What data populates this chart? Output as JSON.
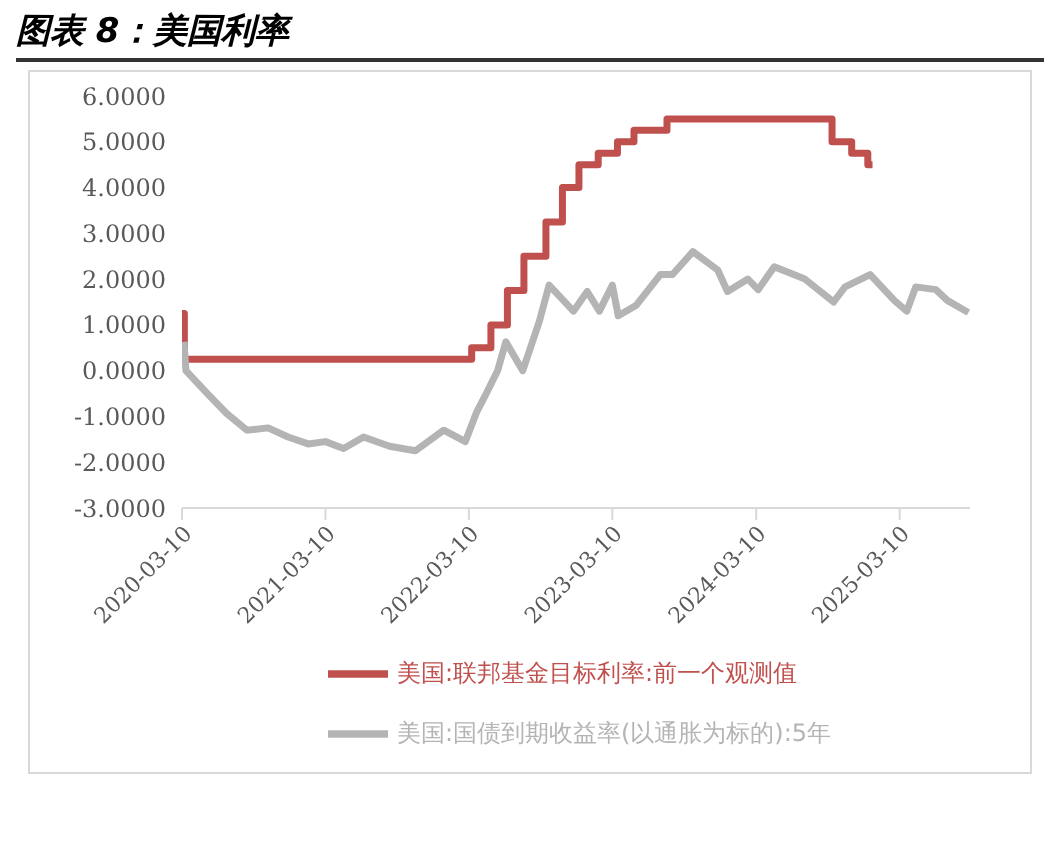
{
  "chart_data": {
    "type": "line",
    "title": "图表 8：美国利率",
    "xlim": [
      "2020-03-10",
      "2025-09-05"
    ],
    "xticks": [
      "2020-03-10",
      "2021-03-10",
      "2022-03-10",
      "2023-03-10",
      "2024-03-10",
      "2025-03-10"
    ],
    "ylim": [
      -3,
      6
    ],
    "yticks": [
      {
        "value": -3,
        "label": "-3.0000"
      },
      {
        "value": -2,
        "label": "-2.0000"
      },
      {
        "value": -1,
        "label": "-1.0000"
      },
      {
        "value": 0,
        "label": "0.0000"
      },
      {
        "value": 1,
        "label": "1.0000"
      },
      {
        "value": 2,
        "label": "2.0000"
      },
      {
        "value": 3,
        "label": "3.0000"
      },
      {
        "value": 4,
        "label": "4.0000"
      },
      {
        "value": 5,
        "label": "5.0000"
      },
      {
        "value": 6,
        "label": "6.0000"
      }
    ],
    "grid": false,
    "legend": "bottom",
    "marker": "none",
    "series": [
      {
        "name": "美国:联邦基金目标利率:前一个观测值",
        "type": "step",
        "color": "#c0504d",
        "x": [
          "2020-03-10",
          "2020-03-16",
          "2022-03-17",
          "2022-05-05",
          "2022-06-16",
          "2022-07-28",
          "2022-09-22",
          "2022-11-03",
          "2022-12-15",
          "2023-02-02",
          "2023-03-23",
          "2023-05-04",
          "2023-07-27",
          "2024-09-19",
          "2024-11-08",
          "2024-12-19",
          "2024-12-31"
        ],
        "values": [
          1.25,
          0.25,
          0.5,
          1.0,
          1.75,
          2.5,
          3.25,
          4.0,
          4.5,
          4.75,
          5.0,
          5.25,
          5.5,
          5.0,
          4.75,
          4.5,
          4.5
        ]
      },
      {
        "name": "美国:国债到期收益率(以通胀为标的):5年",
        "type": "line",
        "color": "#b4b4b4",
        "x": [
          "2020-03-15",
          "2020-03-20",
          "2020-05-10",
          "2020-07-01",
          "2020-08-22",
          "2020-10-15",
          "2020-12-05",
          "2021-01-25",
          "2021-03-10",
          "2021-04-25",
          "2021-06-15",
          "2021-08-20",
          "2021-10-25",
          "2022-01-05",
          "2022-03-01",
          "2022-03-30",
          "2022-04-25",
          "2022-05-22",
          "2022-06-12",
          "2022-07-25",
          "2022-09-05",
          "2022-09-30",
          "2022-12-01",
          "2023-01-05",
          "2023-02-05",
          "2023-03-10",
          "2023-03-25",
          "2023-05-10",
          "2023-07-10",
          "2023-08-10",
          "2023-10-01",
          "2023-12-03",
          "2023-12-28",
          "2024-02-18",
          "2024-03-15",
          "2024-04-25",
          "2024-07-12",
          "2024-09-23",
          "2024-10-22",
          "2024-12-25",
          "2025-02-25",
          "2025-03-28",
          "2025-04-20",
          "2025-06-10",
          "2025-07-10",
          "2025-09-01"
        ],
        "values": [
          0.63,
          0.0,
          -0.47,
          -0.93,
          -1.3,
          -1.25,
          -1.45,
          -1.6,
          -1.55,
          -1.7,
          -1.45,
          -1.65,
          -1.75,
          -1.3,
          -1.55,
          -0.9,
          -0.47,
          0.0,
          0.63,
          0.0,
          1.07,
          1.87,
          1.3,
          1.73,
          1.3,
          1.87,
          1.2,
          1.43,
          2.1,
          2.1,
          2.6,
          2.2,
          1.73,
          2.0,
          1.77,
          2.27,
          2.0,
          1.5,
          1.83,
          2.1,
          1.53,
          1.3,
          1.83,
          1.77,
          1.53,
          1.27
        ]
      }
    ]
  }
}
